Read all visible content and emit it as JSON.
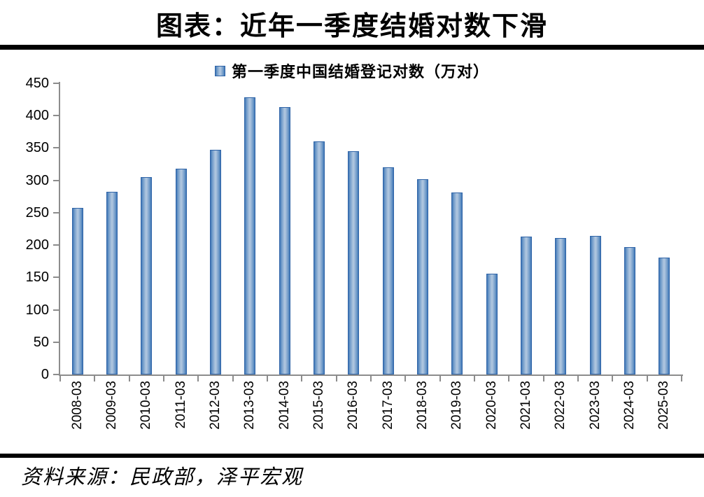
{
  "title": "图表：近年一季度结婚对数下滑",
  "source_note": "资料来源：民政部，泽平宏观",
  "chart_data": {
    "type": "bar",
    "title": "图表：近年一季度结婚对数下滑",
    "legend_entries": [
      "第一季度中国结婚登记对数（万对）"
    ],
    "legend_position": "top-center",
    "categories": [
      "2008-03",
      "2009-03",
      "2010-03",
      "2011-03",
      "2012-03",
      "2013-03",
      "2014-03",
      "2015-03",
      "2016-03",
      "2017-03",
      "2018-03",
      "2019-03",
      "2020-03",
      "2021-03",
      "2022-03",
      "2023-03",
      "2024-03",
      "2025-03"
    ],
    "values": [
      257.7,
      282.2,
      305.2,
      317.6,
      346.8,
      428.2,
      412.8,
      360.2,
      344.8,
      319.8,
      301.7,
      281.5,
      155.7,
      213.2,
      210.7,
      214.7,
      196.9,
      181.0
    ],
    "xlabel": "",
    "ylabel": "",
    "ylim": [
      0,
      450
    ],
    "ytick_interval": 50,
    "yticks": [
      0,
      50,
      100,
      150,
      200,
      250,
      300,
      350,
      400,
      450
    ],
    "grid": false,
    "colors": {
      "bar_edge": "#3f77b7",
      "bar_mid": "#6e99c8",
      "bar_center": "#aec5df",
      "bar_border": "#2f64a7",
      "axis": "#8c8c8c",
      "text": "#000000",
      "rule": "#000000"
    }
  }
}
